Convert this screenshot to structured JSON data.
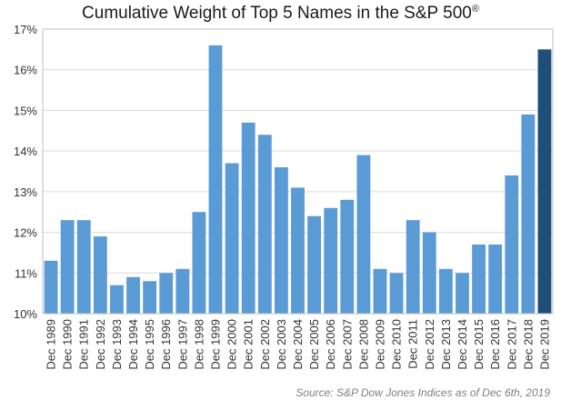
{
  "chart_data": {
    "type": "bar",
    "title": "Cumulative Weight of Top 5 Names in the S&P 500",
    "title_mark": "®",
    "xlabel": "",
    "ylabel": "",
    "categories": [
      "Dec 1989",
      "Dec 1990",
      "Dec 1991",
      "Dec 1992",
      "Dec 1993",
      "Dec 1994",
      "Dec 1995",
      "Dec 1996",
      "Dec 1997",
      "Dec 1998",
      "Dec 1999",
      "Dec 2000",
      "Dec 2001",
      "Dec 2002",
      "Dec 2003",
      "Dec 2004",
      "Dec 2005",
      "Dec 2006",
      "Dec 2007",
      "Dec 2008",
      "Dec 2009",
      "Dec 2010",
      "Dec 2011",
      "Dec 2012",
      "Dec 2013",
      "Dec 2014",
      "Dec 2015",
      "Dec 2016",
      "Dec 2017",
      "Dec 2018",
      "Dec 2019"
    ],
    "values": [
      11.3,
      12.3,
      12.3,
      11.9,
      10.7,
      10.9,
      10.8,
      11.0,
      11.1,
      12.5,
      16.6,
      13.7,
      14.7,
      14.4,
      13.6,
      13.1,
      12.4,
      12.6,
      12.8,
      13.9,
      11.1,
      11.0,
      12.3,
      12.0,
      11.1,
      11.0,
      11.7,
      11.7,
      13.4,
      14.9,
      16.5
    ],
    "ylim": [
      10,
      17
    ],
    "yticks": [
      "10%",
      "11%",
      "12%",
      "13%",
      "14%",
      "15%",
      "16%",
      "17%"
    ],
    "ytick_values": [
      10,
      11,
      12,
      13,
      14,
      15,
      16,
      17
    ],
    "grid": true,
    "bar_color": "#5b9bd5",
    "highlight_color": "#1f4e79",
    "highlight_index": 30,
    "source": "Source: S&P Dow Jones Indices as of Dec 6th, 2019"
  }
}
